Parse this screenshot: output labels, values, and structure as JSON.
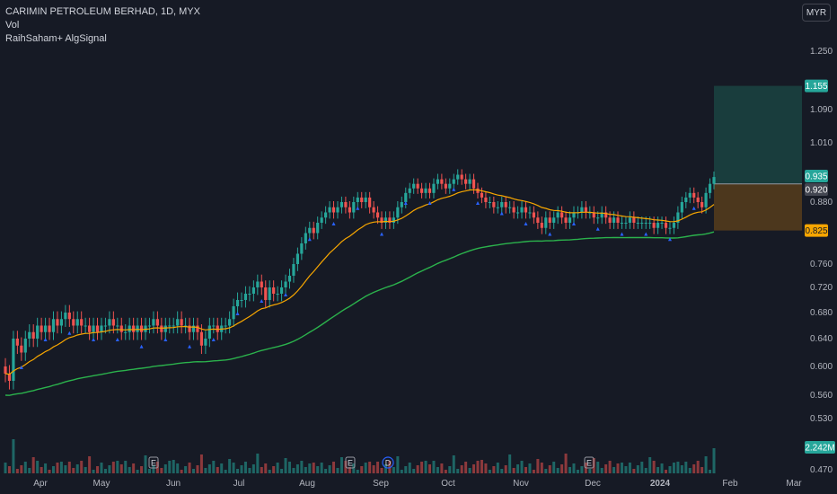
{
  "legend": {
    "symbol": "CARIMIN PETROLEUM BERHAD, 1D, MYX",
    "volume": "Vol",
    "indicator": "RaihSaham+ AlgSignal"
  },
  "currency": "MYR",
  "colors": {
    "up": "#26a69a",
    "down": "#ef5350",
    "ema_fast": "#f7a600",
    "ema_slow": "#2bb24c",
    "signal": "#2962ff",
    "target_zone": "#1b4a45",
    "stop_zone": "#5a3f1c",
    "last_price_tag": "#26a69a",
    "stop_tag": "#f7a600",
    "volume_tag": "#26a69a"
  },
  "chart_data": {
    "type": "candlestick",
    "y_ticks": [
      "1.250",
      "1.090",
      "1.010",
      "0.880",
      "0.760",
      "0.720",
      "0.680",
      "0.640",
      "0.600",
      "0.560",
      "0.530",
      "0.470"
    ],
    "x_ticks": [
      "Apr",
      "May",
      "Jun",
      "Jul",
      "Aug",
      "Sep",
      "Oct",
      "Nov",
      "Dec",
      "2024",
      "Feb",
      "Mar"
    ],
    "closes": [
      0.59,
      0.58,
      0.64,
      0.63,
      0.62,
      0.64,
      0.65,
      0.64,
      0.66,
      0.65,
      0.66,
      0.65,
      0.67,
      0.66,
      0.67,
      0.68,
      0.67,
      0.66,
      0.67,
      0.66,
      0.66,
      0.65,
      0.66,
      0.65,
      0.66,
      0.66,
      0.67,
      0.66,
      0.66,
      0.65,
      0.65,
      0.66,
      0.65,
      0.66,
      0.65,
      0.66,
      0.66,
      0.67,
      0.66,
      0.65,
      0.66,
      0.66,
      0.66,
      0.67,
      0.66,
      0.66,
      0.65,
      0.66,
      0.65,
      0.63,
      0.64,
      0.66,
      0.66,
      0.65,
      0.66,
      0.66,
      0.67,
      0.69,
      0.7,
      0.7,
      0.71,
      0.71,
      0.72,
      0.73,
      0.72,
      0.7,
      0.72,
      0.71,
      0.71,
      0.72,
      0.73,
      0.74,
      0.76,
      0.78,
      0.8,
      0.82,
      0.83,
      0.82,
      0.84,
      0.85,
      0.86,
      0.87,
      0.86,
      0.87,
      0.88,
      0.87,
      0.86,
      0.88,
      0.89,
      0.88,
      0.89,
      0.87,
      0.86,
      0.85,
      0.84,
      0.85,
      0.84,
      0.85,
      0.87,
      0.88,
      0.9,
      0.91,
      0.92,
      0.91,
      0.9,
      0.91,
      0.9,
      0.92,
      0.93,
      0.92,
      0.91,
      0.92,
      0.93,
      0.94,
      0.93,
      0.92,
      0.93,
      0.91,
      0.9,
      0.89,
      0.88,
      0.88,
      0.87,
      0.87,
      0.88,
      0.87,
      0.87,
      0.86,
      0.86,
      0.87,
      0.86,
      0.86,
      0.85,
      0.84,
      0.83,
      0.85,
      0.84,
      0.85,
      0.86,
      0.85,
      0.84,
      0.85,
      0.86,
      0.86,
      0.87,
      0.86,
      0.86,
      0.85,
      0.85,
      0.86,
      0.85,
      0.84,
      0.85,
      0.84,
      0.84,
      0.84,
      0.85,
      0.84,
      0.84,
      0.84,
      0.84,
      0.84,
      0.83,
      0.84,
      0.84,
      0.83,
      0.83,
      0.84,
      0.86,
      0.88,
      0.89,
      0.9,
      0.89,
      0.88,
      0.87,
      0.9,
      0.92,
      0.935
    ],
    "ema_fast_last": 0.87,
    "ema_slow_last": 0.835,
    "last_price": "0.935",
    "current_price": "0.920",
    "target_price": "1.155",
    "stop_price": "0.825",
    "volume_last": "2.242M",
    "events": [
      "E",
      "E",
      "D",
      "E"
    ],
    "y_range": [
      0.47,
      1.28
    ]
  }
}
